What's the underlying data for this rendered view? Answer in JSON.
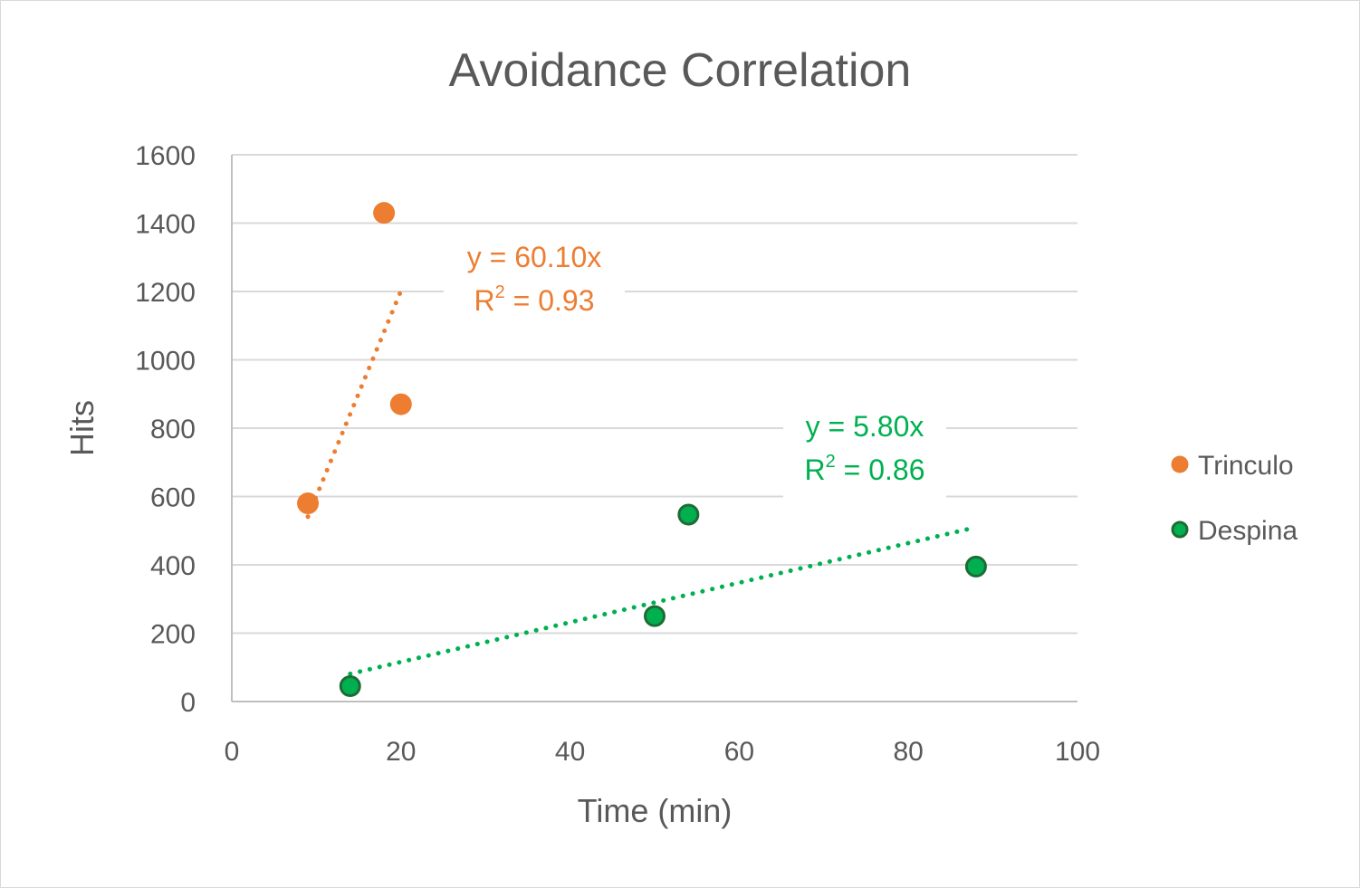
{
  "chart_data": {
    "type": "scatter",
    "title": "Avoidance Correlation",
    "xlabel": "Time (min)",
    "ylabel": "Hits",
    "xlim": [
      0,
      100
    ],
    "ylim": [
      0,
      1600
    ],
    "xticks": [
      0,
      20,
      40,
      60,
      80,
      100
    ],
    "yticks": [
      0,
      200,
      400,
      600,
      800,
      1000,
      1200,
      1400,
      1600
    ],
    "grid": "horizontal",
    "legend_position": "right",
    "series": [
      {
        "name": "Trinculo",
        "color": "#ED7D31",
        "marker_edge": "#ED7D31",
        "points": [
          {
            "x": 9,
            "y": 580
          },
          {
            "x": 18,
            "y": 1430
          },
          {
            "x": 20,
            "y": 870
          }
        ],
        "trendline": {
          "type": "linear",
          "style": "dotted",
          "x_range": [
            9,
            20
          ],
          "y_range": [
            541,
            1202
          ],
          "equation": "y = 60.10x",
          "r2_label": "R",
          "r2_sup": "2",
          "r2_value": " = 0.93"
        }
      },
      {
        "name": "Despina",
        "color": "#00B050",
        "marker_edge": "#1E6B34",
        "points": [
          {
            "x": 14,
            "y": 45
          },
          {
            "x": 50,
            "y": 250
          },
          {
            "x": 54,
            "y": 547
          },
          {
            "x": 88,
            "y": 395
          }
        ],
        "trendline": {
          "type": "linear",
          "style": "dotted",
          "x_range": [
            14,
            88
          ],
          "y_range": [
            81,
            510
          ],
          "equation": "y = 5.80x",
          "r2_label": "R",
          "r2_sup": "2",
          "r2_value": " = 0.86"
        }
      }
    ]
  }
}
